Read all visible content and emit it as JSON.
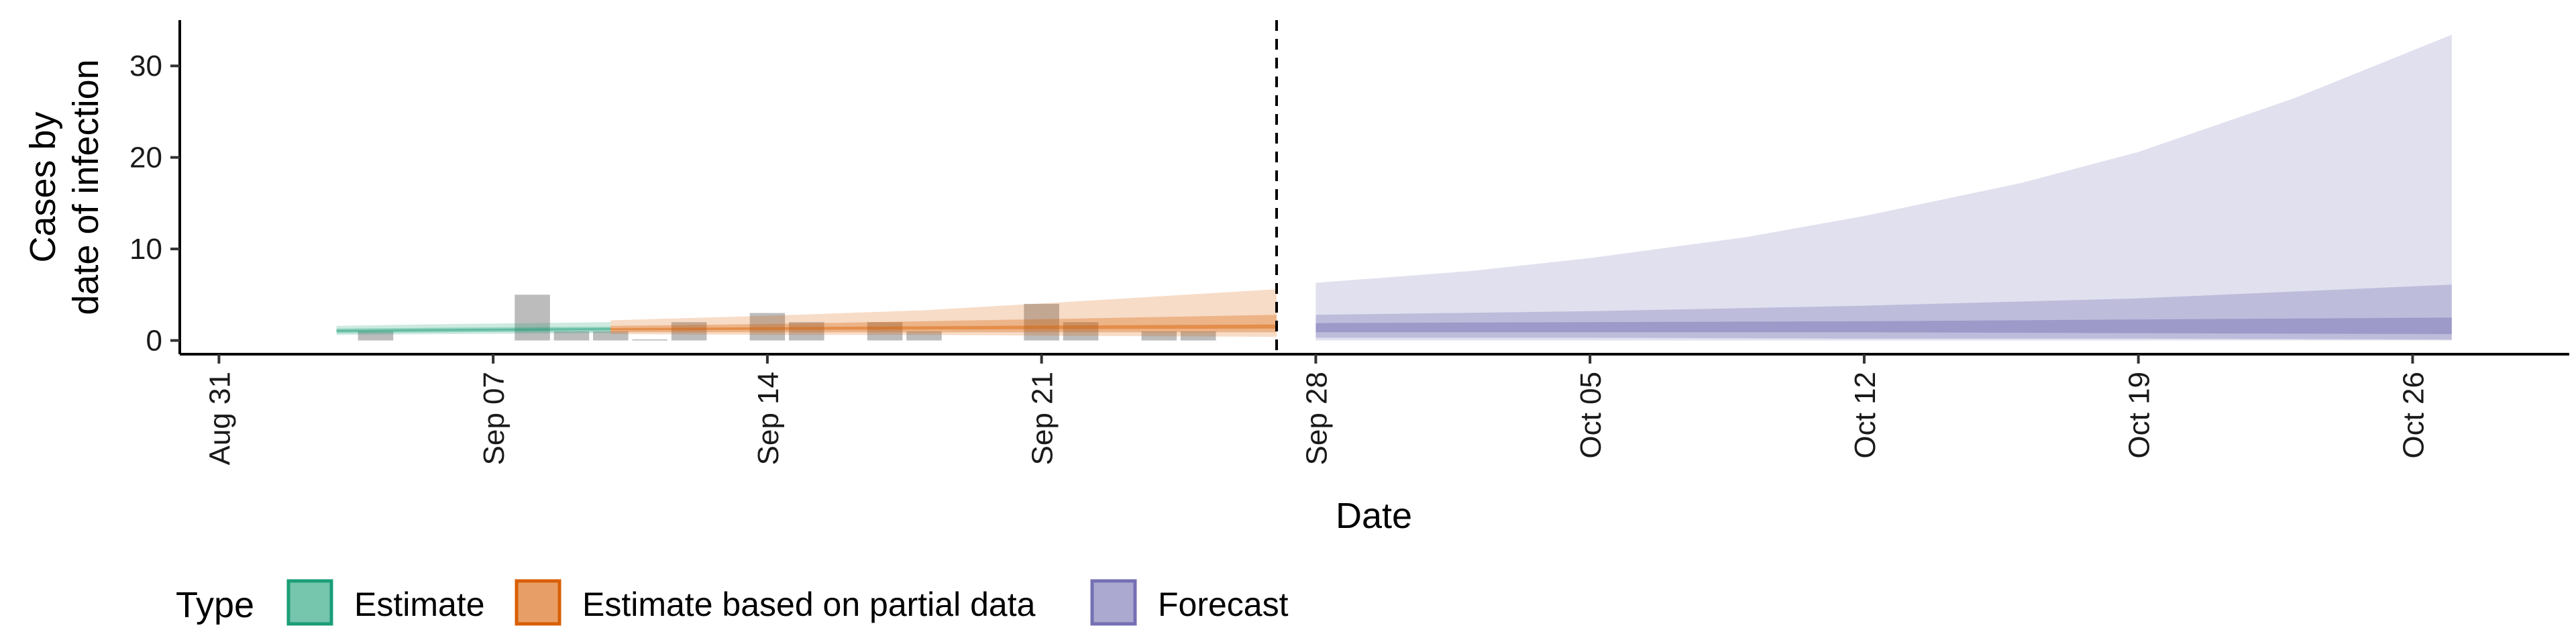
{
  "chart_data": {
    "type": "area",
    "title": "",
    "xlabel": "Date",
    "ylabel_lines": [
      "Cases by",
      "date of infection"
    ],
    "x_range": [
      "2020-08-30",
      "2020-10-30"
    ],
    "ylim": [
      -1.5,
      35
    ],
    "y_ticks": [
      0,
      10,
      20,
      30
    ],
    "x_ticks": [
      {
        "date": "2020-08-31",
        "label": "Aug 31"
      },
      {
        "date": "2020-09-07",
        "label": "Sep 07"
      },
      {
        "date": "2020-09-14",
        "label": "Sep 14"
      },
      {
        "date": "2020-09-21",
        "label": "Sep 21"
      },
      {
        "date": "2020-09-28",
        "label": "Sep 28"
      },
      {
        "date": "2020-10-05",
        "label": "Oct 05"
      },
      {
        "date": "2020-10-12",
        "label": "Oct 12"
      },
      {
        "date": "2020-10-19",
        "label": "Oct 19"
      },
      {
        "date": "2020-10-26",
        "label": "Oct 26"
      }
    ],
    "forecast_cutoff": "2020-09-27",
    "grid": false,
    "legend_position": "bottom-left",
    "legend_title": "Type",
    "colors": {
      "Estimate": "#1b9e77",
      "Estimate based on partial data": "#d95f02",
      "Forecast": "#7570b3",
      "observed_bars": "#b0b0b0"
    },
    "observed_cases": [
      {
        "date": "2020-09-04",
        "value": 1
      },
      {
        "date": "2020-09-08",
        "value": 5
      },
      {
        "date": "2020-09-09",
        "value": 1
      },
      {
        "date": "2020-09-10",
        "value": 1
      },
      {
        "date": "2020-09-11",
        "value": 0
      },
      {
        "date": "2020-09-12",
        "value": 2
      },
      {
        "date": "2020-09-14",
        "value": 3
      },
      {
        "date": "2020-09-15",
        "value": 2
      },
      {
        "date": "2020-09-17",
        "value": 2
      },
      {
        "date": "2020-09-18",
        "value": 1
      },
      {
        "date": "2020-09-21",
        "value": 4
      },
      {
        "date": "2020-09-22",
        "value": 2
      },
      {
        "date": "2020-09-24",
        "value": 1
      },
      {
        "date": "2020-09-25",
        "value": 1
      }
    ],
    "series": [
      {
        "name": "Estimate",
        "ribbons": [
          {
            "level": "outer",
            "points": [
              {
                "date": "2020-09-03",
                "lo": 0.6,
                "hi": 1.6
              },
              {
                "date": "2020-09-06",
                "lo": 0.7,
                "hi": 1.8
              },
              {
                "date": "2020-09-10",
                "lo": 0.8,
                "hi": 2.0
              }
            ]
          },
          {
            "level": "mid",
            "points": [
              {
                "date": "2020-09-03",
                "lo": 0.8,
                "hi": 1.3
              },
              {
                "date": "2020-09-06",
                "lo": 0.9,
                "hi": 1.4
              },
              {
                "date": "2020-09-10",
                "lo": 1.0,
                "hi": 1.5
              }
            ]
          },
          {
            "level": "inner",
            "points": [
              {
                "date": "2020-09-03",
                "lo": 0.95,
                "hi": 1.15
              },
              {
                "date": "2020-09-06",
                "lo": 1.05,
                "hi": 1.25
              },
              {
                "date": "2020-09-10",
                "lo": 1.15,
                "hi": 1.35
              }
            ]
          }
        ]
      },
      {
        "name": "Estimate based on partial data",
        "ribbons": [
          {
            "level": "outer",
            "points": [
              {
                "date": "2020-09-10",
                "lo": 0.7,
                "hi": 2.2
              },
              {
                "date": "2020-09-14",
                "lo": 0.6,
                "hi": 2.7
              },
              {
                "date": "2020-09-18",
                "lo": 0.6,
                "hi": 3.3
              },
              {
                "date": "2020-09-22",
                "lo": 0.5,
                "hi": 4.3
              },
              {
                "date": "2020-09-27",
                "lo": 0.4,
                "hi": 5.6
              }
            ]
          },
          {
            "level": "mid",
            "points": [
              {
                "date": "2020-09-10",
                "lo": 0.9,
                "hi": 1.6
              },
              {
                "date": "2020-09-14",
                "lo": 0.9,
                "hi": 1.8
              },
              {
                "date": "2020-09-18",
                "lo": 0.9,
                "hi": 2.1
              },
              {
                "date": "2020-09-22",
                "lo": 0.9,
                "hi": 2.4
              },
              {
                "date": "2020-09-27",
                "lo": 0.9,
                "hi": 2.8
              }
            ]
          },
          {
            "level": "inner",
            "points": [
              {
                "date": "2020-09-10",
                "lo": 1.1,
                "hi": 1.35
              },
              {
                "date": "2020-09-14",
                "lo": 1.15,
                "hi": 1.45
              },
              {
                "date": "2020-09-18",
                "lo": 1.2,
                "hi": 1.55
              },
              {
                "date": "2020-09-22",
                "lo": 1.25,
                "hi": 1.65
              },
              {
                "date": "2020-09-27",
                "lo": 1.3,
                "hi": 1.75
              }
            ]
          }
        ]
      },
      {
        "name": "Forecast",
        "ribbons": [
          {
            "level": "outer",
            "points": [
              {
                "date": "2020-09-28",
                "lo": 0.0,
                "hi": 6.3
              },
              {
                "date": "2020-10-02",
                "lo": 0.0,
                "hi": 7.6
              },
              {
                "date": "2020-10-05",
                "lo": 0.0,
                "hi": 9.0
              },
              {
                "date": "2020-10-09",
                "lo": 0.0,
                "hi": 11.3
              },
              {
                "date": "2020-10-12",
                "lo": 0.0,
                "hi": 13.6
              },
              {
                "date": "2020-10-16",
                "lo": 0.0,
                "hi": 17.2
              },
              {
                "date": "2020-10-19",
                "lo": 0.0,
                "hi": 20.6
              },
              {
                "date": "2020-10-23",
                "lo": 0.0,
                "hi": 26.5
              },
              {
                "date": "2020-10-27",
                "lo": 0.0,
                "hi": 33.4
              }
            ]
          },
          {
            "level": "mid",
            "points": [
              {
                "date": "2020-09-28",
                "lo": 0.3,
                "hi": 2.8
              },
              {
                "date": "2020-10-05",
                "lo": 0.3,
                "hi": 3.2
              },
              {
                "date": "2020-10-12",
                "lo": 0.2,
                "hi": 3.8
              },
              {
                "date": "2020-10-19",
                "lo": 0.2,
                "hi": 4.6
              },
              {
                "date": "2020-10-27",
                "lo": 0.1,
                "hi": 6.1
              }
            ]
          },
          {
            "level": "inner",
            "points": [
              {
                "date": "2020-09-28",
                "lo": 0.9,
                "hi": 1.9
              },
              {
                "date": "2020-10-05",
                "lo": 0.9,
                "hi": 2.0
              },
              {
                "date": "2020-10-12",
                "lo": 0.9,
                "hi": 2.1
              },
              {
                "date": "2020-10-19",
                "lo": 0.8,
                "hi": 2.3
              },
              {
                "date": "2020-10-27",
                "lo": 0.7,
                "hi": 2.5
              }
            ]
          }
        ]
      }
    ]
  }
}
